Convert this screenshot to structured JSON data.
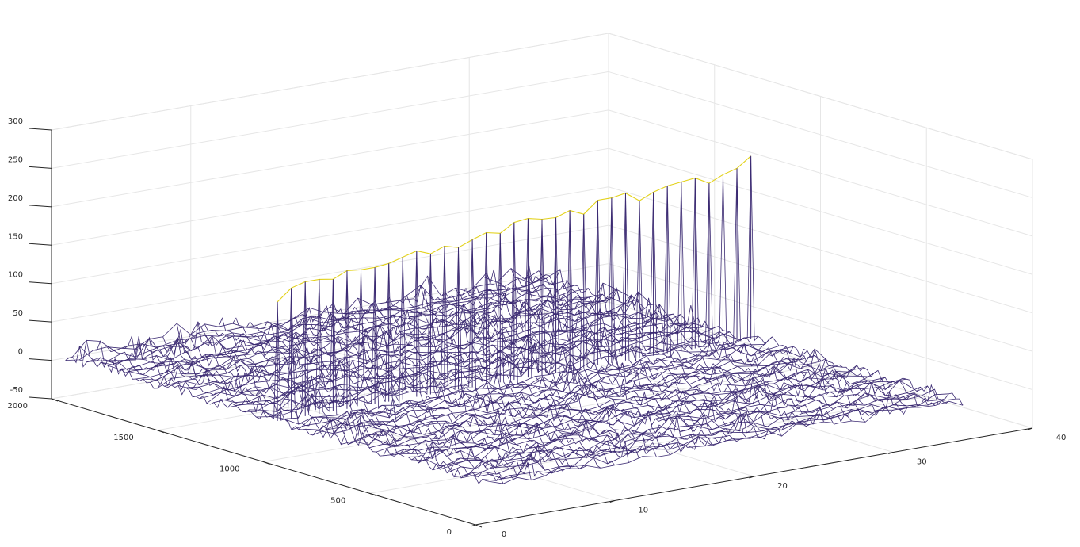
{
  "chart_data": {
    "type": "surface-mesh",
    "title": "",
    "xlabel": "",
    "ylabel": "",
    "zlabel": "",
    "xlim": [
      0,
      40
    ],
    "ylim": [
      0,
      2000
    ],
    "zlim": [
      -50,
      300
    ],
    "x_ticks": [
      "0",
      "10",
      "20",
      "30",
      "40"
    ],
    "y_ticks": [
      "0",
      "500",
      "1000",
      "1500",
      "2000"
    ],
    "z_ticks": [
      "-50",
      "0",
      "50",
      "100",
      "150",
      "200",
      "250",
      "300"
    ],
    "x_tick_values": [
      0,
      10,
      20,
      30,
      40
    ],
    "y_tick_values": [
      0,
      500,
      1000,
      1500,
      2000
    ],
    "z_tick_values": [
      -50,
      0,
      50,
      100,
      150,
      200,
      250,
      300
    ],
    "grid": true,
    "noise_floor": {
      "x_range": [
        1,
        35
      ],
      "y_range": [
        0,
        2000
      ],
      "z_range": [
        -15,
        25
      ]
    },
    "peak_ridge": {
      "y": 1000,
      "x": [
        1,
        2,
        3,
        4,
        5,
        6,
        7,
        8,
        9,
        10,
        11,
        12,
        13,
        14,
        15,
        16,
        17,
        18,
        19,
        20,
        21,
        22,
        23,
        24,
        25,
        26,
        27,
        28,
        29,
        30,
        31,
        32,
        33,
        34,
        35
      ],
      "z": [
        155,
        170,
        175,
        175,
        172,
        180,
        178,
        178,
        180,
        185,
        190,
        183,
        190,
        185,
        192,
        198,
        194,
        205,
        207,
        203,
        202,
        208,
        200,
        215,
        215,
        218,
        205,
        213,
        218,
        220,
        222,
        212,
        220,
        225,
        238
      ]
    },
    "colors": {
      "low": "#3b2a72",
      "high": "#e3d21b",
      "grid": "#e6e6e6",
      "axis": "#262626"
    }
  }
}
